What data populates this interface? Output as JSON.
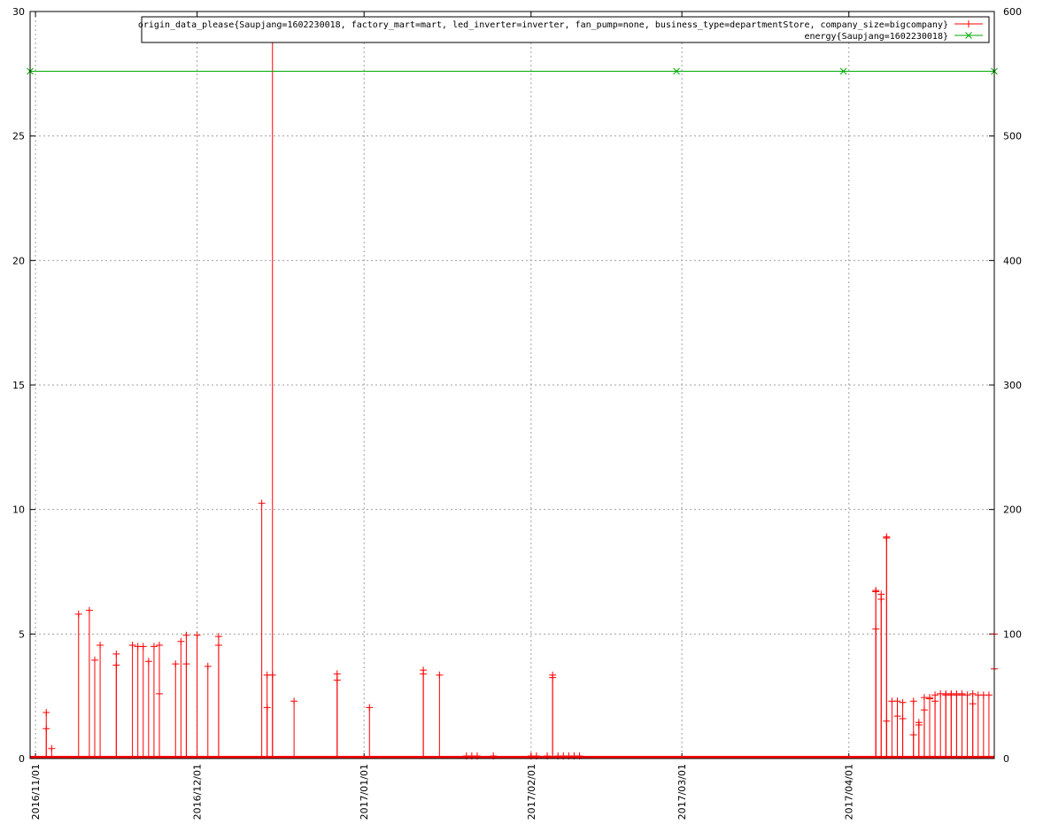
{
  "chart_data": {
    "type": "line",
    "x_axis": {
      "type": "date",
      "range": [
        "2016-10-31",
        "2017-04-28"
      ],
      "tick_labels": [
        "2016/11/01",
        "2016/12/01",
        "2017/01/01",
        "2017/02/01",
        "2017/03/01",
        "2017/04/01"
      ],
      "tick_dates": [
        "2016-11-01",
        "2016-12-01",
        "2017-01-01",
        "2017-02-01",
        "2017-03-01",
        "2017-04-01"
      ]
    },
    "y_axis_left": {
      "range": [
        0,
        30
      ],
      "ticks": [
        0,
        5,
        10,
        15,
        20,
        25,
        30
      ]
    },
    "y_axis_right": {
      "range": [
        0,
        600
      ],
      "ticks": [
        0,
        100,
        200,
        300,
        400,
        500,
        600
      ]
    },
    "grid": true,
    "legend_position": "top-right",
    "series": [
      {
        "name": "origin_data_please{Saupjang=1602230018, factory_mart=mart, led_inverter=inverter, fan_pump=none, business_type=departmentStore, company_size=bigcompany}",
        "axis": "left",
        "color": "#ff0000",
        "marker": "plus",
        "style": "impulses",
        "points": [
          {
            "x": "2016-11-03",
            "y": 1.85
          },
          {
            "x": "2016-11-03",
            "y": 1.2
          },
          {
            "x": "2016-11-04",
            "y": 0.4
          },
          {
            "x": "2016-11-09",
            "y": 5.8
          },
          {
            "x": "2016-11-11",
            "y": 5.95
          },
          {
            "x": "2016-11-12",
            "y": 3.95
          },
          {
            "x": "2016-11-13",
            "y": 4.55
          },
          {
            "x": "2016-11-16",
            "y": 4.2
          },
          {
            "x": "2016-11-16",
            "y": 3.75
          },
          {
            "x": "2016-11-19",
            "y": 4.55
          },
          {
            "x": "2016-11-20",
            "y": 4.5
          },
          {
            "x": "2016-11-21",
            "y": 4.5
          },
          {
            "x": "2016-11-22",
            "y": 3.9
          },
          {
            "x": "2016-11-23",
            "y": 4.5
          },
          {
            "x": "2016-11-24",
            "y": 4.55
          },
          {
            "x": "2016-11-24",
            "y": 2.6
          },
          {
            "x": "2016-11-27",
            "y": 3.8
          },
          {
            "x": "2016-11-28",
            "y": 4.7
          },
          {
            "x": "2016-11-29",
            "y": 4.95
          },
          {
            "x": "2016-11-29",
            "y": 3.8
          },
          {
            "x": "2016-12-01",
            "y": 4.95
          },
          {
            "x": "2016-12-03",
            "y": 3.7
          },
          {
            "x": "2016-12-05",
            "y": 4.9
          },
          {
            "x": "2016-12-05",
            "y": 4.55
          },
          {
            "x": "2016-12-13",
            "y": 10.25
          },
          {
            "x": "2016-12-14",
            "y": 3.35
          },
          {
            "x": "2016-12-14",
            "y": 2.05
          },
          {
            "x": "2016-12-15",
            "y": 29.6
          },
          {
            "x": "2016-12-15",
            "y": 3.35
          },
          {
            "x": "2016-12-19",
            "y": 2.3
          },
          {
            "x": "2016-12-27",
            "y": 3.4
          },
          {
            "x": "2016-12-27",
            "y": 3.15
          },
          {
            "x": "2017-01-02",
            "y": 2.05
          },
          {
            "x": "2017-01-12",
            "y": 3.55
          },
          {
            "x": "2017-01-12",
            "y": 3.4
          },
          {
            "x": "2017-01-15",
            "y": 3.35
          },
          {
            "x": "2017-01-20",
            "y": 0.1
          },
          {
            "x": "2017-01-21",
            "y": 0.1
          },
          {
            "x": "2017-01-22",
            "y": 0.1
          },
          {
            "x": "2017-01-25",
            "y": 0.1
          },
          {
            "x": "2017-02-01",
            "y": 0.1
          },
          {
            "x": "2017-02-02",
            "y": 0.1
          },
          {
            "x": "2017-02-04",
            "y": 0.1
          },
          {
            "x": "2017-02-05",
            "y": 3.35
          },
          {
            "x": "2017-02-05",
            "y": 3.25
          },
          {
            "x": "2017-02-06",
            "y": 0.1
          },
          {
            "x": "2017-02-07",
            "y": 0.1
          },
          {
            "x": "2017-02-08",
            "y": 0.1
          },
          {
            "x": "2017-02-09",
            "y": 0.1
          },
          {
            "x": "2017-02-10",
            "y": 0.1
          },
          {
            "x": "2017-04-06",
            "y": 6.75
          },
          {
            "x": "2017-04-06",
            "y": 6.7
          },
          {
            "x": "2017-04-06",
            "y": 5.2
          },
          {
            "x": "2017-04-07",
            "y": 6.6
          },
          {
            "x": "2017-04-07",
            "y": 6.4
          },
          {
            "x": "2017-04-08",
            "y": 8.9
          },
          {
            "x": "2017-04-08",
            "y": 8.85
          },
          {
            "x": "2017-04-08",
            "y": 1.5
          },
          {
            "x": "2017-04-09",
            "y": 2.3
          },
          {
            "x": "2017-04-10",
            "y": 2.3
          },
          {
            "x": "2017-04-10",
            "y": 1.7
          },
          {
            "x": "2017-04-11",
            "y": 2.25
          },
          {
            "x": "2017-04-11",
            "y": 1.6
          },
          {
            "x": "2017-04-13",
            "y": 2.3
          },
          {
            "x": "2017-04-13",
            "y": 0.95
          },
          {
            "x": "2017-04-14",
            "y": 1.45
          },
          {
            "x": "2017-04-14",
            "y": 1.35
          },
          {
            "x": "2017-04-15",
            "y": 2.45
          },
          {
            "x": "2017-04-15",
            "y": 1.95
          },
          {
            "x": "2017-04-16",
            "y": 2.45
          },
          {
            "x": "2017-04-16",
            "y": 2.4
          },
          {
            "x": "2017-04-17",
            "y": 2.55
          },
          {
            "x": "2017-04-17",
            "y": 2.3
          },
          {
            "x": "2017-04-18",
            "y": 2.6
          },
          {
            "x": "2017-04-19",
            "y": 2.6
          },
          {
            "x": "2017-04-19",
            "y": 2.55
          },
          {
            "x": "2017-04-20",
            "y": 2.6
          },
          {
            "x": "2017-04-20",
            "y": 2.55
          },
          {
            "x": "2017-04-21",
            "y": 2.6
          },
          {
            "x": "2017-04-21",
            "y": 2.55
          },
          {
            "x": "2017-04-22",
            "y": 2.6
          },
          {
            "x": "2017-04-22",
            "y": 2.55
          },
          {
            "x": "2017-04-23",
            "y": 2.55
          },
          {
            "x": "2017-04-24",
            "y": 2.6
          },
          {
            "x": "2017-04-24",
            "y": 2.2
          },
          {
            "x": "2017-04-25",
            "y": 2.55
          },
          {
            "x": "2017-04-26",
            "y": 2.55
          },
          {
            "x": "2017-04-27",
            "y": 2.55
          },
          {
            "x": "2017-04-28",
            "y": 5.0
          },
          {
            "x": "2017-04-28",
            "y": 3.6
          }
        ]
      },
      {
        "name": "energy{Saupjang=1602230018}",
        "axis": "right",
        "color": "#00aa00",
        "marker": "cross",
        "style": "linespoints",
        "points": [
          {
            "x": "2016-10-31",
            "y": 552
          },
          {
            "x": "2017-02-28",
            "y": 552
          },
          {
            "x": "2017-03-31",
            "y": 552
          },
          {
            "x": "2017-04-28",
            "y": 552
          }
        ]
      }
    ]
  }
}
